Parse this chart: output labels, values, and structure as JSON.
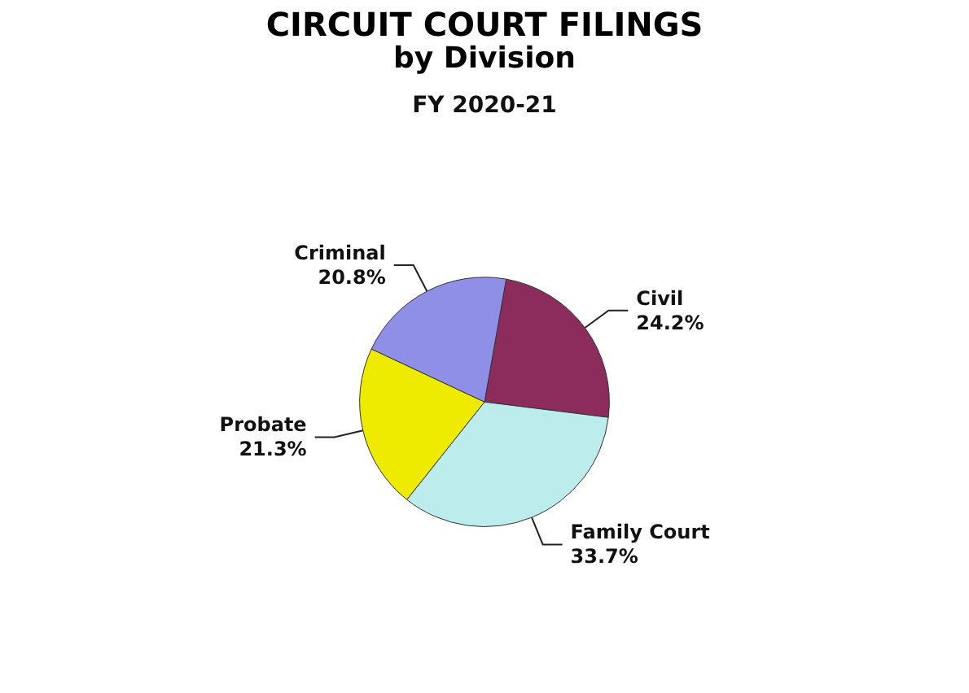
{
  "chart_data": {
    "type": "pie",
    "title": "CIRCUIT COURT FILINGS",
    "subtitle": "by Division",
    "annotations": [
      "FY 2020-21"
    ],
    "categories": [
      "Civil",
      "Family Court",
      "Probate",
      "Criminal"
    ],
    "values": [
      24.2,
      33.7,
      21.3,
      20.8
    ],
    "colors": [
      "#8b2c5c",
      "#bdecec",
      "#eeeb00",
      "#8f8fe8"
    ],
    "value_labels": [
      "24.2%",
      "33.7%",
      "21.3%",
      "20.8%"
    ],
    "legend": false
  }
}
